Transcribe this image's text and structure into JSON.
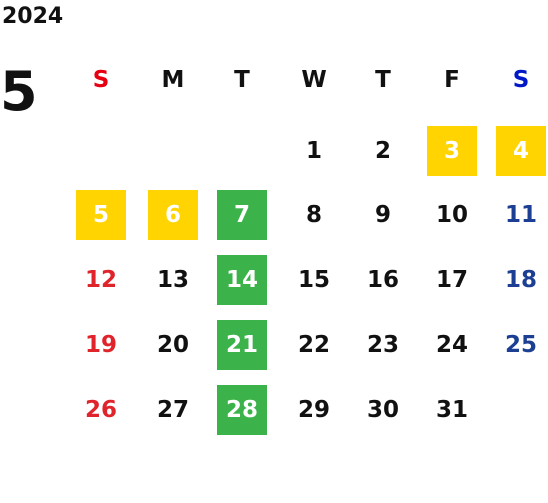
{
  "header": {
    "year": "2024",
    "month": "5"
  },
  "weekdays": [
    "S",
    "M",
    "T",
    "W",
    "T",
    "F",
    "S"
  ],
  "weekday_colors": [
    "#e60012",
    "#111111",
    "#111111",
    "#111111",
    "#111111",
    "#111111",
    "#0018c8"
  ],
  "day_colors": [
    "#e0242b",
    "#111111",
    "#111111",
    "#111111",
    "#111111",
    "#111111",
    "#1c3f94"
  ],
  "highlight_text_color": "#ffffff",
  "weeks": [
    [
      null,
      null,
      null,
      "1",
      "2",
      {
        "label": "3",
        "fill": "#ffd400"
      },
      {
        "label": "4",
        "fill": "#ffd400"
      }
    ],
    [
      {
        "label": "5",
        "fill": "#ffd400"
      },
      {
        "label": "6",
        "fill": "#ffd400"
      },
      {
        "label": "7",
        "fill": "#3cb34a"
      },
      "8",
      "9",
      "10",
      "11"
    ],
    [
      "12",
      "13",
      {
        "label": "14",
        "fill": "#3cb34a"
      },
      "15",
      "16",
      "17",
      "18"
    ],
    [
      "19",
      "20",
      {
        "label": "21",
        "fill": "#3cb34a"
      },
      "22",
      "23",
      "24",
      "25"
    ],
    [
      "26",
      "27",
      {
        "label": "28",
        "fill": "#3cb34a"
      },
      "29",
      "30",
      "31"
    ]
  ]
}
